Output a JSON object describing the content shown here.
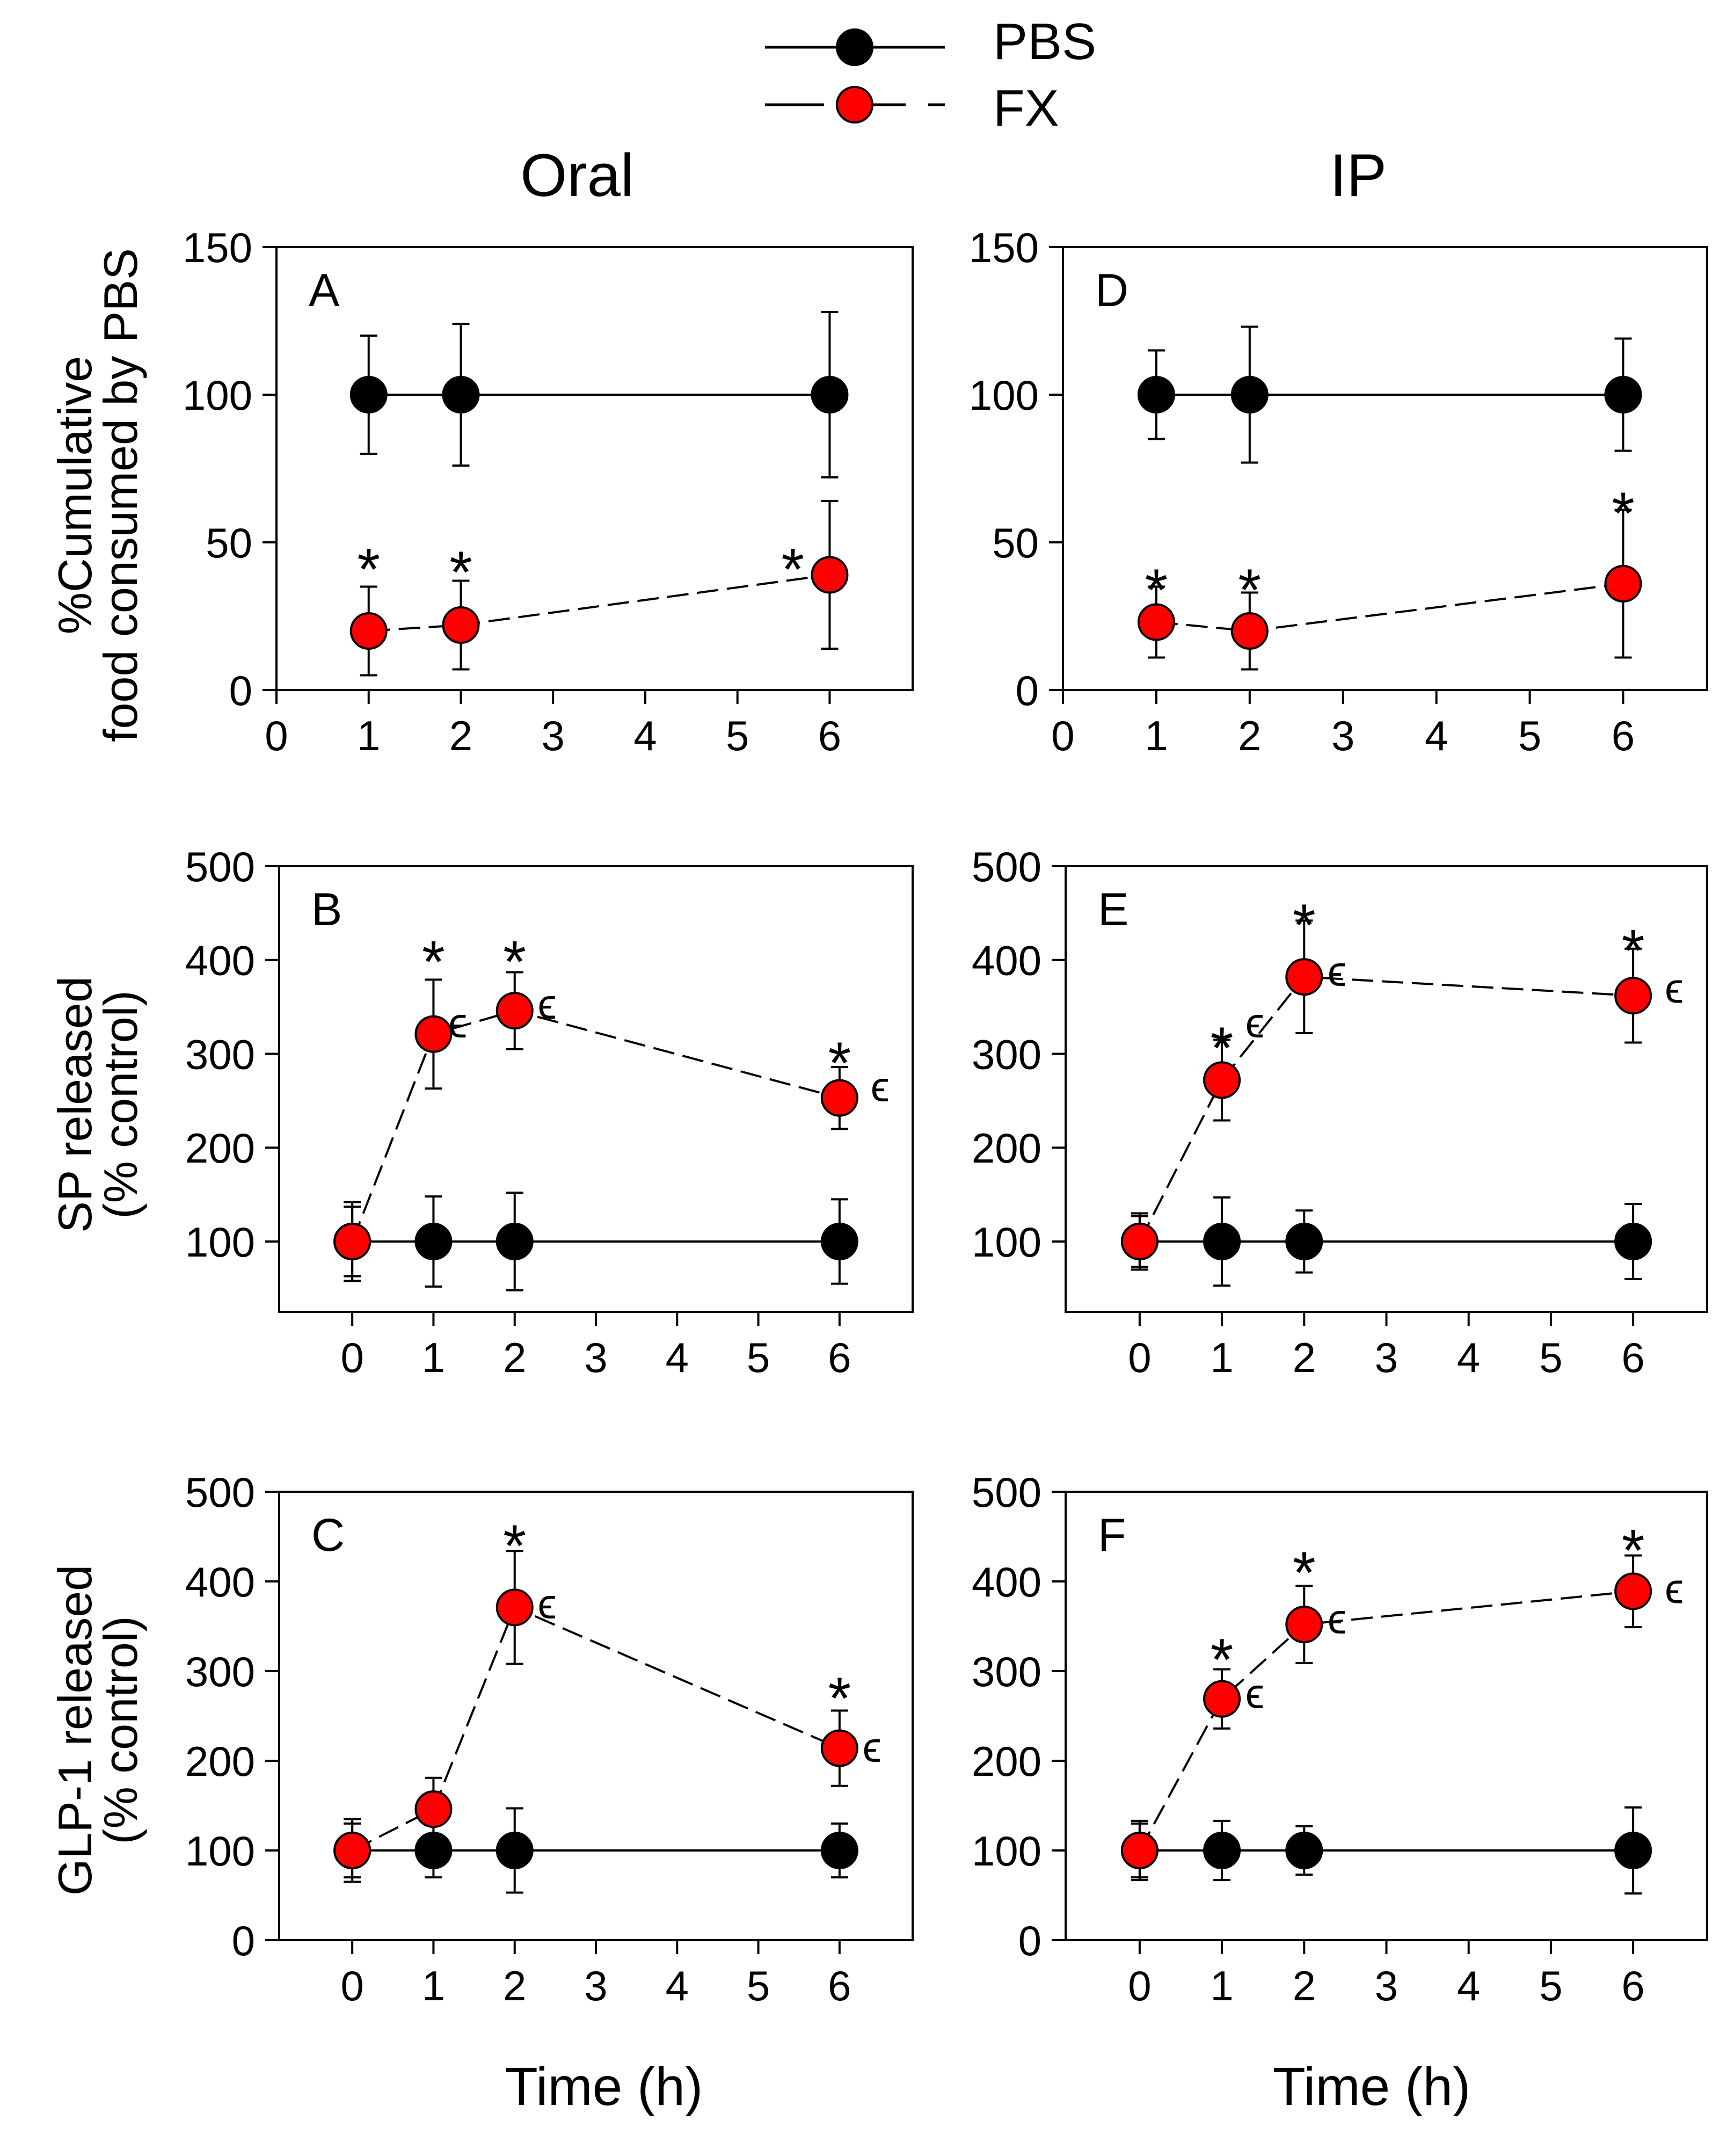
{
  "legend": {
    "entries": [
      {
        "label": "PBS",
        "marker_color": "#000000",
        "line": "solid"
      },
      {
        "label": "FX",
        "marker_color": "#ff0000",
        "line": "dashed"
      }
    ]
  },
  "column_headers": [
    "Oral",
    "IP"
  ],
  "x_axis_label": "Time (h)",
  "row_y_labels": [
    [
      "%Cumulative",
      "food consumed by PBS"
    ],
    [
      "SP released",
      "(% control)"
    ],
    [
      "GLP-1 released",
      "(% control)"
    ]
  ],
  "colors": {
    "pbs": "#000000",
    "fx": "#ff0000",
    "axis": "#000000"
  },
  "chart_data": [
    {
      "panel": "A",
      "type": "line",
      "column": "Oral",
      "ylabel": "%Cumulative food consumed by PBS",
      "ylim": [
        0,
        150
      ],
      "yticks": [
        0,
        50,
        100,
        150
      ],
      "xticks": [
        "0",
        "1",
        "2",
        "3",
        "4",
        "5",
        "6"
      ],
      "xlim": [
        0,
        6.9
      ],
      "series": [
        {
          "name": "PBS",
          "x": [
            1,
            2,
            6
          ],
          "y": [
            100,
            100,
            100
          ],
          "err": [
            20,
            24,
            28
          ]
        },
        {
          "name": "FX",
          "x": [
            1,
            2,
            6
          ],
          "y": [
            20,
            22,
            39
          ],
          "err": [
            15,
            15,
            25
          ]
        }
      ],
      "annotations": [
        {
          "text": "*",
          "x": 1,
          "y": 44
        },
        {
          "text": "*",
          "x": 2,
          "y": 43
        },
        {
          "text": "*",
          "x": 5.6,
          "y": 44
        }
      ]
    },
    {
      "panel": "B",
      "type": "line",
      "column": "Oral",
      "ylabel": "SP released (% control)",
      "ylim": [
        25,
        500
      ],
      "yticks": [
        100,
        200,
        300,
        400,
        500
      ],
      "xticks": [
        "0",
        "1",
        "2",
        "3",
        "4",
        "5",
        "6"
      ],
      "xlim": [
        -0.9,
        6.9
      ],
      "series": [
        {
          "name": "PBS",
          "x": [
            0,
            1,
            2,
            6
          ],
          "y": [
            100,
            100,
            100,
            100
          ],
          "err": [
            42,
            48,
            52,
            45
          ]
        },
        {
          "name": "FX",
          "x": [
            0,
            1,
            2,
            6
          ],
          "y": [
            100,
            321,
            346,
            253
          ],
          "err": [
            37,
            58,
            41,
            33
          ]
        }
      ],
      "annotations": [
        {
          "text": "*",
          "x": 1,
          "y": 408
        },
        {
          "text": "*",
          "x": 2,
          "y": 408
        },
        {
          "text": "*",
          "x": 6,
          "y": 300
        },
        {
          "text": "ϵ",
          "x": 1.3,
          "y": 330
        },
        {
          "text": "ϵ",
          "x": 2.4,
          "y": 350
        },
        {
          "text": "ϵ",
          "x": 6.5,
          "y": 262
        }
      ]
    },
    {
      "panel": "C",
      "type": "line",
      "column": "Oral",
      "ylabel": "GLP-1 released (% control)",
      "ylim": [
        0,
        500
      ],
      "yticks": [
        0,
        100,
        200,
        300,
        400,
        500
      ],
      "xticks": [
        "0",
        "1",
        "2",
        "3",
        "4",
        "5",
        "6"
      ],
      "xlim": [
        -0.9,
        6.9
      ],
      "series": [
        {
          "name": "PBS",
          "x": [
            0,
            1,
            2,
            6
          ],
          "y": [
            100,
            100,
            100,
            100
          ],
          "err": [
            35,
            30,
            47,
            30
          ]
        },
        {
          "name": "FX",
          "x": [
            0,
            1,
            2,
            6
          ],
          "y": [
            100,
            146,
            371,
            214
          ],
          "err": [
            30,
            35,
            63,
            42
          ]
        }
      ],
      "annotations": [
        {
          "text": "*",
          "x": 2,
          "y": 450
        },
        {
          "text": "*",
          "x": 6,
          "y": 280
        },
        {
          "text": "ϵ",
          "x": 2.4,
          "y": 372
        },
        {
          "text": "ϵ",
          "x": 6.4,
          "y": 212
        }
      ]
    },
    {
      "panel": "D",
      "type": "line",
      "column": "IP",
      "ylabel": "%Cumulative food consumed by PBS",
      "ylim": [
        0,
        150
      ],
      "yticks": [
        0,
        50,
        100,
        150
      ],
      "xticks": [
        "0",
        "1",
        "2",
        "3",
        "4",
        "5",
        "6"
      ],
      "xlim": [
        0,
        6.9
      ],
      "series": [
        {
          "name": "PBS",
          "x": [
            1,
            2,
            6
          ],
          "y": [
            100,
            100,
            100
          ],
          "err": [
            15,
            23,
            19
          ]
        },
        {
          "name": "FX",
          "x": [
            1,
            2,
            6
          ],
          "y": [
            23,
            20,
            36
          ],
          "err": [
            12,
            13,
            25
          ]
        }
      ],
      "annotations": [
        {
          "text": "*",
          "x": 1,
          "y": 37
        },
        {
          "text": "*",
          "x": 2,
          "y": 37
        },
        {
          "text": "*",
          "x": 6,
          "y": 63
        }
      ]
    },
    {
      "panel": "E",
      "type": "line",
      "column": "IP",
      "ylabel": "SP released (% control)",
      "ylim": [
        25,
        500
      ],
      "yticks": [
        100,
        200,
        300,
        400,
        500
      ],
      "xticks": [
        "0",
        "1",
        "2",
        "3",
        "4",
        "5",
        "6"
      ],
      "xlim": [
        -0.9,
        6.9
      ],
      "series": [
        {
          "name": "PBS",
          "x": [
            0,
            1,
            2,
            6
          ],
          "y": [
            100,
            100,
            100,
            100
          ],
          "err": [
            30,
            47,
            33,
            40
          ]
        },
        {
          "name": "FX",
          "x": [
            0,
            1,
            2,
            6
          ],
          "y": [
            100,
            272,
            382,
            362
          ],
          "err": [
            27,
            43,
            60,
            50
          ]
        }
      ],
      "annotations": [
        {
          "text": "*",
          "x": 1,
          "y": 316
        },
        {
          "text": "*",
          "x": 2,
          "y": 447
        },
        {
          "text": "*",
          "x": 6,
          "y": 420
        },
        {
          "text": "ϵ",
          "x": 1.4,
          "y": 330
        },
        {
          "text": "ϵ",
          "x": 2.4,
          "y": 385
        },
        {
          "text": "ϵ",
          "x": 6.5,
          "y": 367
        }
      ]
    },
    {
      "panel": "F",
      "type": "line",
      "column": "IP",
      "ylabel": "GLP-1 released (% control)",
      "ylim": [
        0,
        500
      ],
      "yticks": [
        0,
        100,
        200,
        300,
        400,
        500
      ],
      "xticks": [
        "0",
        "1",
        "2",
        "3",
        "4",
        "5",
        "6"
      ],
      "xlim": [
        -0.9,
        6.9
      ],
      "series": [
        {
          "name": "PBS",
          "x": [
            0,
            1,
            2,
            6
          ],
          "y": [
            100,
            100,
            100,
            100
          ],
          "err": [
            33,
            33,
            27,
            48
          ]
        },
        {
          "name": "FX",
          "x": [
            0,
            1,
            2,
            6
          ],
          "y": [
            100,
            269,
            352,
            389
          ],
          "err": [
            30,
            33,
            43,
            40
          ]
        }
      ],
      "annotations": [
        {
          "text": "*",
          "x": 1,
          "y": 323
        },
        {
          "text": "*",
          "x": 2,
          "y": 420
        },
        {
          "text": "*",
          "x": 6,
          "y": 445
        },
        {
          "text": "ϵ",
          "x": 1.4,
          "y": 272
        },
        {
          "text": "ϵ",
          "x": 2.4,
          "y": 355
        },
        {
          "text": "ϵ",
          "x": 6.5,
          "y": 389
        }
      ]
    }
  ]
}
